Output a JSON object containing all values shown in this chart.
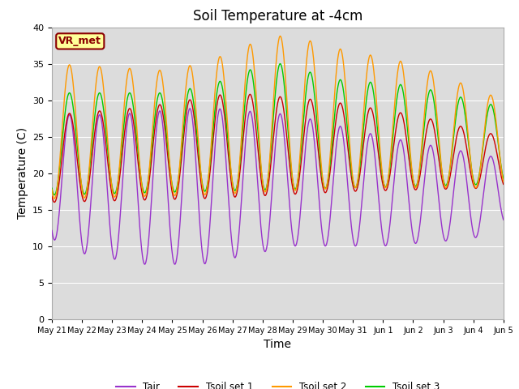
{
  "title": "Soil Temperature at -4cm",
  "xlabel": "Time",
  "ylabel": "Temperature (C)",
  "ylim": [
    0,
    40
  ],
  "yticks": [
    0,
    5,
    10,
    15,
    20,
    25,
    30,
    35,
    40
  ],
  "xlabels": [
    "May 21",
    "May 22",
    "May 23",
    "May 24",
    "May 25",
    "May 26",
    "May 27",
    "May 28",
    "May 29",
    "May 30",
    "May 31",
    "Jun 1",
    "Jun 2",
    "Jun 3",
    "Jun 4",
    "Jun 5"
  ],
  "colors": {
    "Tair": "#9933cc",
    "Tsoil_set1": "#cc0000",
    "Tsoil_set2": "#ff9900",
    "Tsoil_set3": "#00cc00"
  },
  "legend_labels": [
    "Tair",
    "Tsoil set 1",
    "Tsoil set 2",
    "Tsoil set 3"
  ],
  "annotation_text": "VR_met",
  "annotation_color": "#8b0000",
  "annotation_bg": "#ffff99",
  "bg_color": "#dcdcdc",
  "title_fontsize": 12,
  "label_fontsize": 10,
  "tick_fontsize": 8,
  "n_days": 15,
  "n_points_per_day": 144
}
